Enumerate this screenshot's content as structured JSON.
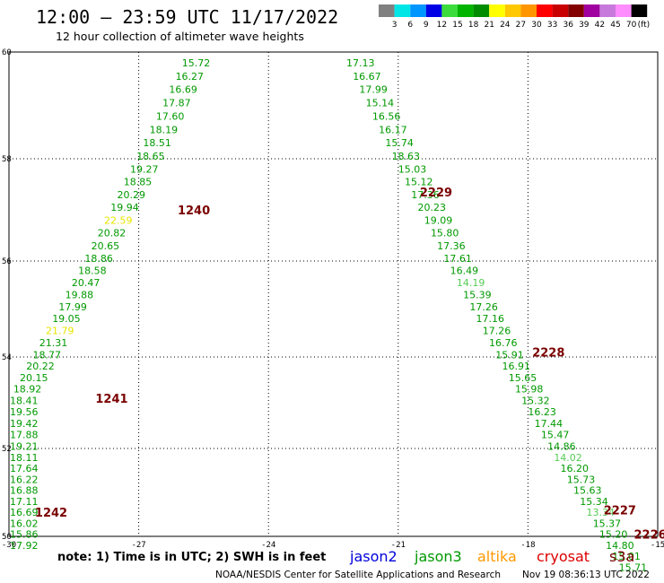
{
  "header": {
    "title": "12:00 – 23:59 UTC 11/17/2022",
    "subtitle": "12 hour collection of altimeter wave heights"
  },
  "legend": {
    "colors": [
      "#808080",
      "#00e6e6",
      "#0096ff",
      "#0000e6",
      "#3cdc3c",
      "#00b400",
      "#008c00",
      "#ffff00",
      "#ffc800",
      "#ff9600",
      "#ff0000",
      "#c80000",
      "#820000",
      "#a000a0",
      "#c87adc",
      "#ff8cff",
      "#000000"
    ],
    "labels": [
      "3",
      "6",
      "9",
      "12",
      "15",
      "18",
      "21",
      "24",
      "27",
      "30",
      "33",
      "36",
      "39",
      "42",
      "45",
      "70"
    ],
    "unit": "(ft)"
  },
  "axes": {
    "x_ticks": [
      "-30",
      "-27",
      "-24",
      "-21",
      "-18",
      "-15"
    ],
    "y_ticks": [
      "60",
      "58",
      "56",
      "54",
      "52",
      "50"
    ]
  },
  "chart_data": {
    "type": "scatter",
    "x_range": [
      -30,
      -15
    ],
    "y_range": [
      50,
      60
    ],
    "value_color_rules": [
      {
        "max": 21,
        "color": "#009900"
      },
      {
        "max": 24,
        "color": "#e6e600"
      }
    ],
    "tracks": [
      {
        "pass": "1240",
        "pass_label_pos": {
          "lon": -26.1,
          "lat": 57.0
        },
        "points": [
          {
            "lon": -26.0,
            "lat": 59.8,
            "v": "15.72"
          },
          {
            "lon": -26.15,
            "lat": 59.55,
            "v": "16.27"
          },
          {
            "lon": -26.3,
            "lat": 59.3,
            "v": "16.69"
          },
          {
            "lon": -26.45,
            "lat": 59.05,
            "v": "17.87"
          },
          {
            "lon": -26.6,
            "lat": 58.8,
            "v": "17.60"
          },
          {
            "lon": -26.75,
            "lat": 58.55,
            "v": "18.19"
          },
          {
            "lon": -26.9,
            "lat": 58.3,
            "v": "18.51"
          },
          {
            "lon": -27.05,
            "lat": 58.05,
            "v": "18.65"
          },
          {
            "lon": -27.2,
            "lat": 57.8,
            "v": "19.27"
          },
          {
            "lon": -27.35,
            "lat": 57.55,
            "v": "18.85"
          },
          {
            "lon": -27.5,
            "lat": 57.3,
            "v": "20.29"
          },
          {
            "lon": -27.65,
            "lat": 57.05,
            "v": "19.94"
          },
          {
            "lon": -27.8,
            "lat": 56.8,
            "v": "22.59"
          },
          {
            "lon": -27.95,
            "lat": 56.55,
            "v": "20.82"
          },
          {
            "lon": -28.1,
            "lat": 56.3,
            "v": "20.65"
          },
          {
            "lon": -28.25,
            "lat": 56.05,
            "v": "18.86"
          },
          {
            "lon": -28.4,
            "lat": 55.8,
            "v": "18.58"
          }
        ]
      },
      {
        "pass": "1241",
        "pass_label_pos": {
          "lon": -28.0,
          "lat": 53.1
        },
        "points": [
          {
            "lon": -28.55,
            "lat": 55.55,
            "v": "20.47"
          },
          {
            "lon": -28.7,
            "lat": 55.3,
            "v": "19.88"
          },
          {
            "lon": -28.85,
            "lat": 55.05,
            "v": "17.99"
          },
          {
            "lon": -29.0,
            "lat": 54.8,
            "v": "19.05"
          },
          {
            "lon": -29.15,
            "lat": 54.55,
            "v": "21.79"
          },
          {
            "lon": -29.3,
            "lat": 54.3,
            "v": "21.31"
          },
          {
            "lon": -29.45,
            "lat": 54.05,
            "v": "18.77"
          },
          {
            "lon": -29.6,
            "lat": 53.8,
            "v": "20.22"
          },
          {
            "lon": -29.75,
            "lat": 53.55,
            "v": "20.15"
          },
          {
            "lon": -29.9,
            "lat": 53.3,
            "v": "18.92"
          },
          {
            "lon": -30.05,
            "lat": 53.05,
            "v": "18.41"
          },
          {
            "lon": -30.2,
            "lat": 52.8,
            "v": "19.56"
          },
          {
            "lon": -30.35,
            "lat": 52.55,
            "v": "19.42"
          },
          {
            "lon": -30.5,
            "lat": 52.3,
            "v": "17.88"
          },
          {
            "lon": -30.65,
            "lat": 52.05,
            "v": "19.21"
          },
          {
            "lon": -30.8,
            "lat": 51.8,
            "v": "18.11"
          },
          {
            "lon": -30.95,
            "lat": 51.55,
            "v": "17.64"
          }
        ]
      },
      {
        "pass": "1242",
        "pass_label_pos": {
          "lon": -29.4,
          "lat": 50.55
        },
        "points": [
          {
            "lon": -31.1,
            "lat": 51.3,
            "v": "16.22"
          },
          {
            "lon": -31.25,
            "lat": 51.05,
            "v": "16.88"
          },
          {
            "lon": -31.4,
            "lat": 50.8,
            "v": "17.11"
          },
          {
            "lon": -31.55,
            "lat": 50.55,
            "v": "16.69"
          },
          {
            "lon": -31.7,
            "lat": 50.3,
            "v": "16.02"
          },
          {
            "lon": -31.85,
            "lat": 50.05,
            "v": "15.86"
          },
          {
            "lon": -32.0,
            "lat": 49.8,
            "v": "17.92"
          }
        ]
      },
      {
        "pass": "2229",
        "pass_label_pos": {
          "lon": -20.5,
          "lat": 57.35
        },
        "points": [
          {
            "lon": -22.2,
            "lat": 59.8,
            "v": "17.13"
          },
          {
            "lon": -22.05,
            "lat": 59.55,
            "v": "16.67"
          },
          {
            "lon": -21.9,
            "lat": 59.3,
            "v": "17.99"
          },
          {
            "lon": -21.75,
            "lat": 59.05,
            "v": "15.14"
          },
          {
            "lon": -21.6,
            "lat": 58.8,
            "v": "16.56"
          },
          {
            "lon": -21.45,
            "lat": 58.55,
            "v": "16.17"
          },
          {
            "lon": -21.3,
            "lat": 58.3,
            "v": "15.74"
          },
          {
            "lon": -21.15,
            "lat": 58.05,
            "v": "18.63"
          },
          {
            "lon": -21.0,
            "lat": 57.8,
            "v": "15.03"
          },
          {
            "lon": -20.85,
            "lat": 57.55,
            "v": "15.12"
          },
          {
            "lon": -20.7,
            "lat": 57.3,
            "v": "17.36"
          },
          {
            "lon": -20.55,
            "lat": 57.05,
            "v": "20.23"
          },
          {
            "lon": -20.4,
            "lat": 56.8,
            "v": "19.09"
          },
          {
            "lon": -20.25,
            "lat": 56.55,
            "v": "15.80"
          },
          {
            "lon": -20.1,
            "lat": 56.3,
            "v": "17.36"
          },
          {
            "lon": -19.95,
            "lat": 56.05,
            "v": "17.61"
          },
          {
            "lon": -19.8,
            "lat": 55.8,
            "v": "16.49"
          }
        ]
      },
      {
        "pass": "2228",
        "pass_label_pos": {
          "lon": -17.9,
          "lat": 54.1
        },
        "points": [
          {
            "lon": -19.65,
            "lat": 55.55,
            "v": "14.19"
          },
          {
            "lon": -19.5,
            "lat": 55.3,
            "v": "15.39"
          },
          {
            "lon": -19.35,
            "lat": 55.05,
            "v": "17.26"
          },
          {
            "lon": -19.2,
            "lat": 54.8,
            "v": "17.16"
          },
          {
            "lon": -19.05,
            "lat": 54.55,
            "v": "17.26"
          },
          {
            "lon": -18.9,
            "lat": 54.3,
            "v": "16.76"
          },
          {
            "lon": -18.75,
            "lat": 54.05,
            "v": "15.91"
          },
          {
            "lon": -18.6,
            "lat": 53.8,
            "v": "16.91"
          },
          {
            "lon": -18.45,
            "lat": 53.55,
            "v": "15.65"
          },
          {
            "lon": -18.3,
            "lat": 53.3,
            "v": "15.98"
          },
          {
            "lon": -18.15,
            "lat": 53.05,
            "v": "15.32"
          },
          {
            "lon": -18.0,
            "lat": 52.8,
            "v": "16.23"
          },
          {
            "lon": -17.85,
            "lat": 52.55,
            "v": "17.44"
          },
          {
            "lon": -17.7,
            "lat": 52.3,
            "v": "15.47"
          },
          {
            "lon": -17.55,
            "lat": 52.05,
            "v": "14.86"
          },
          {
            "lon": -17.4,
            "lat": 51.8,
            "v": "14.02"
          },
          {
            "lon": -17.25,
            "lat": 51.55,
            "v": "16.20"
          },
          {
            "lon": -17.1,
            "lat": 51.3,
            "v": "15.73"
          }
        ]
      },
      {
        "pass": "2227",
        "pass_label_pos": {
          "lon": -16.25,
          "lat": 50.6
        },
        "points": [
          {
            "lon": -16.95,
            "lat": 51.05,
            "v": "15.63"
          },
          {
            "lon": -16.8,
            "lat": 50.8,
            "v": "15.34"
          },
          {
            "lon": -16.65,
            "lat": 50.55,
            "v": "13.34"
          },
          {
            "lon": -16.5,
            "lat": 50.3,
            "v": "15.37"
          },
          {
            "lon": -16.35,
            "lat": 50.05,
            "v": "15.20"
          },
          {
            "lon": -16.2,
            "lat": 49.8,
            "v": "14.80"
          }
        ]
      },
      {
        "pass": "2226",
        "pass_label_pos": {
          "lon": -15.55,
          "lat": 50.05
        },
        "points": [
          {
            "lon": -16.05,
            "lat": 49.55,
            "v": "15.01"
          },
          {
            "lon": -15.9,
            "lat": 49.3,
            "v": "15.71"
          }
        ]
      }
    ]
  },
  "footer": {
    "note": "note:  1) Time is in UTC;  2) SWH is in feet",
    "missions": [
      {
        "name": "jason2",
        "color": "#0000dd"
      },
      {
        "name": "jason3",
        "color": "#009900"
      },
      {
        "name": "altika",
        "color": "#ff9900"
      },
      {
        "name": "cryosat",
        "color": "#dd0000"
      },
      {
        "name": "s3a",
        "color": "#7a0000"
      }
    ],
    "credit": "NOAA/NESDIS Center for Satellite Applications and Research",
    "timestamp": "Nov 19 08:36:13 UTC 2022"
  }
}
